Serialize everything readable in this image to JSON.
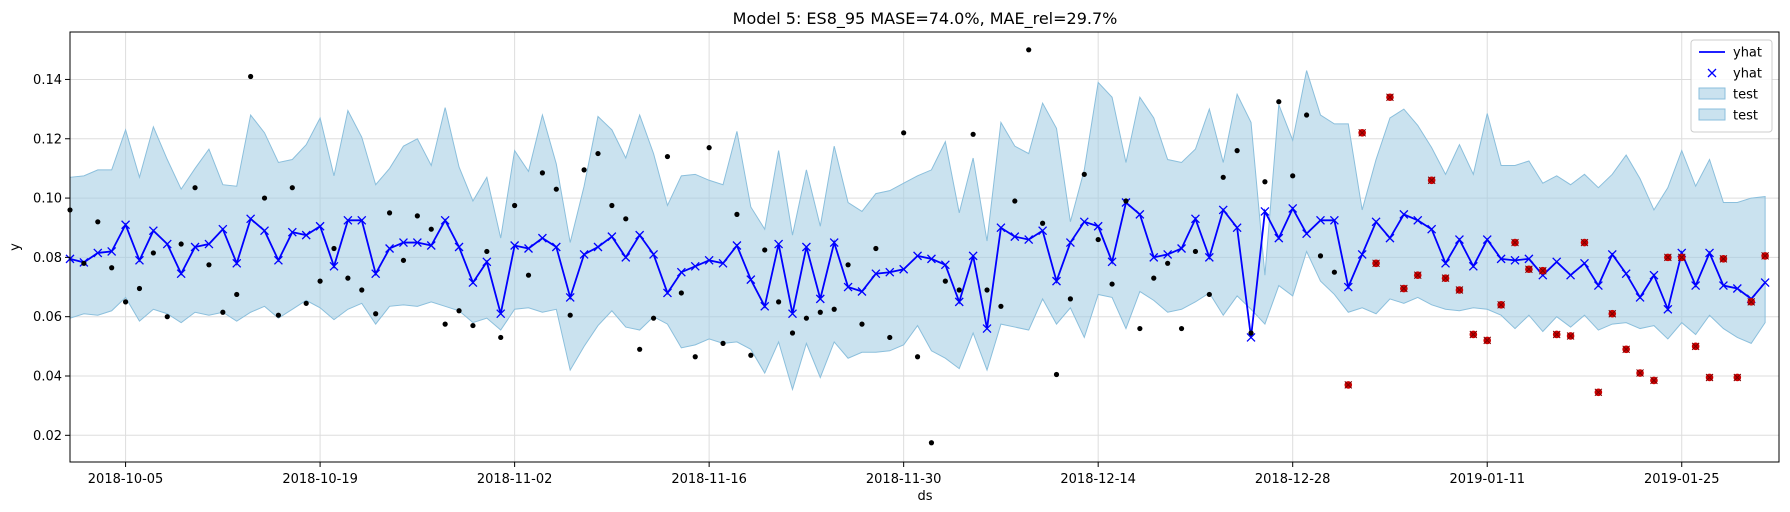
{
  "chart_data": {
    "type": "line",
    "title": "Model 5: ES8_95 MASE=74.0%, MAE_rel=29.7%",
    "xlabel": "ds",
    "ylabel": "y",
    "x_start": "2018-10-01",
    "x_end": "2019-02-01",
    "xlim": [
      "2018-10-01",
      "2019-02-01"
    ],
    "ylim": [
      0.011,
      0.156
    ],
    "x_ticks": [
      "2018-10-05",
      "2018-10-19",
      "2018-11-02",
      "2018-11-16",
      "2018-11-30",
      "2018-12-14",
      "2018-12-28",
      "2019-01-11",
      "2019-01-25"
    ],
    "y_ticks": [
      0.02,
      0.04,
      0.06,
      0.08,
      0.1,
      0.12,
      0.14
    ],
    "y_tick_labels": [
      "0.02",
      "0.04",
      "0.06",
      "0.08",
      "0.10",
      "0.12",
      "0.14"
    ],
    "grid": true,
    "legend_position": "top-right",
    "legend": [
      {
        "label": "yhat",
        "kind": "line"
      },
      {
        "label": "yhat",
        "kind": "marker"
      },
      {
        "label": "test",
        "kind": "band"
      },
      {
        "label": "test",
        "kind": "band"
      }
    ],
    "colors": {
      "yhat": "#0000ff",
      "band_fill": "#9ecae1",
      "band_stroke": "#8bbfdc",
      "observed": "#000000",
      "test_marker": "#cc0000",
      "grid": "#dddddd"
    },
    "yhat": [
      0.0795,
      0.0783,
      0.0815,
      0.082,
      0.091,
      0.079,
      0.089,
      0.0845,
      0.0745,
      0.0835,
      0.0845,
      0.0895,
      0.078,
      0.093,
      0.089,
      0.079,
      0.0885,
      0.0875,
      0.0905,
      0.077,
      0.0925,
      0.0925,
      0.0745,
      0.083,
      0.085,
      0.085,
      0.084,
      0.0925,
      0.0835,
      0.0715,
      0.0785,
      0.061,
      0.084,
      0.083,
      0.0865,
      0.0835,
      0.0665,
      0.081,
      0.0835,
      0.087,
      0.08,
      0.0875,
      0.081,
      0.068,
      0.075,
      0.077,
      0.079,
      0.078,
      0.084,
      0.0725,
      0.0635,
      0.0845,
      0.061,
      0.0835,
      0.066,
      0.085,
      0.07,
      0.0685,
      0.0745,
      0.075,
      0.076,
      0.0805,
      0.0795,
      0.0775,
      0.065,
      0.0805,
      0.056,
      0.09,
      0.087,
      0.086,
      0.089,
      0.072,
      0.085,
      0.092,
      0.0905,
      0.0785,
      0.0985,
      0.0945,
      0.08,
      0.081,
      0.083,
      0.093,
      0.08,
      0.096,
      0.09,
      0.053,
      0.0955,
      0.0865,
      0.0965,
      0.088,
      0.0925,
      0.0925,
      0.07,
      0.081,
      0.092,
      0.0865,
      0.0945,
      0.0925,
      0.0895,
      0.078,
      0.086,
      0.077,
      0.086,
      0.0795,
      0.079,
      0.0795,
      0.074,
      0.0785,
      0.074,
      0.078,
      0.0705,
      0.081,
      0.0745,
      0.0665,
      0.074,
      0.0625,
      0.0815,
      0.0705,
      0.0815,
      0.0705,
      0.0695,
      0.066,
      0.0715
    ],
    "upper": [
      0.107,
      0.1075,
      0.1095,
      0.1095,
      0.123,
      0.107,
      0.124,
      0.113,
      0.103,
      0.11,
      0.1165,
      0.1045,
      0.104,
      0.128,
      0.122,
      0.112,
      0.113,
      0.118,
      0.127,
      0.1075,
      0.1295,
      0.1205,
      0.1045,
      0.11,
      0.1175,
      0.12,
      0.111,
      0.1305,
      0.1105,
      0.099,
      0.107,
      0.0865,
      0.116,
      0.109,
      0.128,
      0.1115,
      0.085,
      0.104,
      0.1275,
      0.123,
      0.1135,
      0.128,
      0.115,
      0.0975,
      0.1075,
      0.108,
      0.106,
      0.1045,
      0.1225,
      0.097,
      0.0895,
      0.116,
      0.0875,
      0.1095,
      0.0905,
      0.1175,
      0.0985,
      0.0955,
      0.1015,
      0.1025,
      0.105,
      0.1075,
      0.1095,
      0.119,
      0.095,
      0.1135,
      0.0855,
      0.1255,
      0.1175,
      0.115,
      0.132,
      0.1235,
      0.092,
      0.1095,
      0.139,
      0.134,
      0.112,
      0.134,
      0.127,
      0.113,
      0.112,
      0.1165,
      0.13,
      0.112,
      0.135,
      0.1255,
      0.074,
      0.1315,
      0.1195,
      0.143,
      0.128,
      0.125,
      0.125,
      0.096,
      0.113,
      0.127,
      0.13,
      0.1245,
      0.117,
      0.108,
      0.118,
      0.108,
      0.1285,
      0.111,
      0.111,
      0.1125,
      0.105,
      0.1075,
      0.1045,
      0.108,
      0.1035,
      0.108,
      0.1145,
      0.1065,
      0.096,
      0.1035,
      0.116,
      0.104,
      0.113,
      0.0985,
      0.0985,
      0.1,
      0.1005
    ],
    "lower": [
      0.0595,
      0.061,
      0.0605,
      0.062,
      0.0665,
      0.0585,
      0.0625,
      0.061,
      0.058,
      0.0615,
      0.0605,
      0.0615,
      0.0585,
      0.0615,
      0.0635,
      0.0595,
      0.0625,
      0.0655,
      0.063,
      0.059,
      0.0625,
      0.0645,
      0.0575,
      0.0635,
      0.064,
      0.0635,
      0.065,
      0.0635,
      0.062,
      0.058,
      0.0595,
      0.0555,
      0.0625,
      0.063,
      0.0615,
      0.0625,
      0.042,
      0.05,
      0.057,
      0.062,
      0.0565,
      0.0555,
      0.06,
      0.0575,
      0.0495,
      0.0505,
      0.0525,
      0.051,
      0.0515,
      0.049,
      0.041,
      0.0515,
      0.0355,
      0.051,
      0.0395,
      0.0515,
      0.046,
      0.048,
      0.048,
      0.0485,
      0.0505,
      0.057,
      0.0485,
      0.046,
      0.0425,
      0.0545,
      0.042,
      0.0575,
      0.0565,
      0.0555,
      0.066,
      0.0575,
      0.063,
      0.053,
      0.0675,
      0.0665,
      0.056,
      0.0685,
      0.0655,
      0.0615,
      0.0625,
      0.065,
      0.068,
      0.0605,
      0.067,
      0.0625,
      0.0575,
      0.0705,
      0.067,
      0.082,
      0.072,
      0.0675,
      0.0615,
      0.063,
      0.061,
      0.066,
      0.0645,
      0.0665,
      0.064,
      0.0625,
      0.062,
      0.063,
      0.0625,
      0.0605,
      0.056,
      0.0605,
      0.055,
      0.06,
      0.0565,
      0.0605,
      0.0555,
      0.0575,
      0.058,
      0.056,
      0.057,
      0.0525,
      0.058,
      0.054,
      0.0605,
      0.056,
      0.053,
      0.051,
      0.058
    ],
    "observed": [
      [
        "2018-10-01",
        0.096
      ],
      [
        "2018-10-02",
        0.078
      ],
      [
        "2018-10-03",
        0.092
      ],
      [
        "2018-10-04",
        0.0765
      ],
      [
        "2018-10-05",
        0.065
      ],
      [
        "2018-10-06",
        0.0695
      ],
      [
        "2018-10-07",
        0.0815
      ],
      [
        "2018-10-08",
        0.06
      ],
      [
        "2018-10-09",
        0.0845
      ],
      [
        "2018-10-10",
        0.1035
      ],
      [
        "2018-10-11",
        0.0775
      ],
      [
        "2018-10-12",
        0.0615
      ],
      [
        "2018-10-13",
        0.0675
      ],
      [
        "2018-10-14",
        0.141
      ],
      [
        "2018-10-15",
        0.1
      ],
      [
        "2018-10-16",
        0.0605
      ],
      [
        "2018-10-17",
        0.1035
      ],
      [
        "2018-10-18",
        0.0645
      ],
      [
        "2018-10-19",
        0.072
      ],
      [
        "2018-10-20",
        0.083
      ],
      [
        "2018-10-21",
        0.073
      ],
      [
        "2018-10-22",
        0.069
      ],
      [
        "2018-10-23",
        0.061
      ],
      [
        "2018-10-24",
        0.095
      ],
      [
        "2018-10-25",
        0.079
      ],
      [
        "2018-10-26",
        0.094
      ],
      [
        "2018-10-27",
        0.0895
      ],
      [
        "2018-10-28",
        0.0575
      ],
      [
        "2018-10-29",
        0.062
      ],
      [
        "2018-10-30",
        0.057
      ],
      [
        "2018-10-31",
        0.082
      ],
      [
        "2018-11-01",
        0.053
      ],
      [
        "2018-11-02",
        0.0975
      ],
      [
        "2018-11-03",
        0.074
      ],
      [
        "2018-11-04",
        0.1085
      ],
      [
        "2018-11-05",
        0.103
      ],
      [
        "2018-11-06",
        0.0605
      ],
      [
        "2018-11-07",
        0.1095
      ],
      [
        "2018-11-08",
        0.115
      ],
      [
        "2018-11-09",
        0.0975
      ],
      [
        "2018-11-10",
        0.093
      ],
      [
        "2018-11-11",
        0.049
      ],
      [
        "2018-11-12",
        0.0595
      ],
      [
        "2018-11-13",
        0.114
      ],
      [
        "2018-11-14",
        0.068
      ],
      [
        "2018-11-15",
        0.0465
      ],
      [
        "2018-11-16",
        0.117
      ],
      [
        "2018-11-17",
        0.051
      ],
      [
        "2018-11-18",
        0.0945
      ],
      [
        "2018-11-19",
        0.047
      ],
      [
        "2018-11-20",
        0.0825
      ],
      [
        "2018-11-21",
        0.065
      ],
      [
        "2018-11-22",
        0.0545
      ],
      [
        "2018-11-23",
        0.0595
      ],
      [
        "2018-11-24",
        0.0615
      ],
      [
        "2018-11-25",
        0.0625
      ],
      [
        "2018-11-26",
        0.0775
      ],
      [
        "2018-11-27",
        0.0575
      ],
      [
        "2018-11-28",
        0.083
      ],
      [
        "2018-11-29",
        0.053
      ],
      [
        "2018-11-30",
        0.122
      ],
      [
        "2018-12-01",
        0.0465
      ],
      [
        "2018-12-02",
        0.0175
      ],
      [
        "2018-12-03",
        0.072
      ],
      [
        "2018-12-04",
        0.069
      ],
      [
        "2018-12-05",
        0.1215
      ],
      [
        "2018-12-06",
        0.069
      ],
      [
        "2018-12-07",
        0.0635
      ],
      [
        "2018-12-08",
        0.099
      ],
      [
        "2018-12-09",
        0.15
      ],
      [
        "2018-12-10",
        0.0915
      ],
      [
        "2018-12-11",
        0.0405
      ],
      [
        "2018-12-12",
        0.066
      ],
      [
        "2018-12-13",
        0.108
      ],
      [
        "2018-12-14",
        0.086
      ],
      [
        "2018-12-15",
        0.071
      ],
      [
        "2018-12-16",
        0.099
      ],
      [
        "2018-12-17",
        0.056
      ],
      [
        "2018-12-18",
        0.073
      ],
      [
        "2018-12-19",
        0.078
      ],
      [
        "2018-12-20",
        0.056
      ],
      [
        "2018-12-21",
        0.082
      ],
      [
        "2018-12-22",
        0.0675
      ],
      [
        "2018-12-23",
        0.107
      ],
      [
        "2018-12-24",
        0.116
      ],
      [
        "2018-12-25",
        0.0545
      ],
      [
        "2018-12-26",
        0.1055
      ],
      [
        "2018-12-27",
        0.1325
      ],
      [
        "2018-12-28",
        0.1075
      ],
      [
        "2018-12-29",
        0.128
      ],
      [
        "2018-12-30",
        0.0805
      ],
      [
        "2018-12-31",
        0.075
      ]
    ],
    "test_points": [
      [
        "2019-01-01",
        0.037
      ],
      [
        "2019-01-02",
        0.122
      ],
      [
        "2019-01-03",
        0.078
      ],
      [
        "2019-01-04",
        0.134
      ],
      [
        "2019-01-05",
        0.0695
      ],
      [
        "2019-01-06",
        0.074
      ],
      [
        "2019-01-07",
        0.106
      ],
      [
        "2019-01-08",
        0.073
      ],
      [
        "2019-01-09",
        0.069
      ],
      [
        "2019-01-10",
        0.054
      ],
      [
        "2019-01-11",
        0.052
      ],
      [
        "2019-01-12",
        0.064
      ],
      [
        "2019-01-13",
        0.085
      ],
      [
        "2019-01-14",
        0.076
      ],
      [
        "2019-01-15",
        0.0755
      ],
      [
        "2019-01-16",
        0.054
      ],
      [
        "2019-01-17",
        0.0535
      ],
      [
        "2019-01-18",
        0.085
      ],
      [
        "2019-01-19",
        0.0345
      ],
      [
        "2019-01-20",
        0.061
      ],
      [
        "2019-01-21",
        0.049
      ],
      [
        "2019-01-22",
        0.041
      ],
      [
        "2019-01-23",
        0.0385
      ],
      [
        "2019-01-24",
        0.08
      ],
      [
        "2019-01-25",
        0.08
      ],
      [
        "2019-01-26",
        0.05
      ],
      [
        "2019-01-27",
        0.0395
      ],
      [
        "2019-01-28",
        0.0795
      ],
      [
        "2019-01-29",
        0.0395
      ],
      [
        "2019-01-30",
        0.065
      ],
      [
        "2019-01-31",
        0.0805
      ]
    ]
  }
}
